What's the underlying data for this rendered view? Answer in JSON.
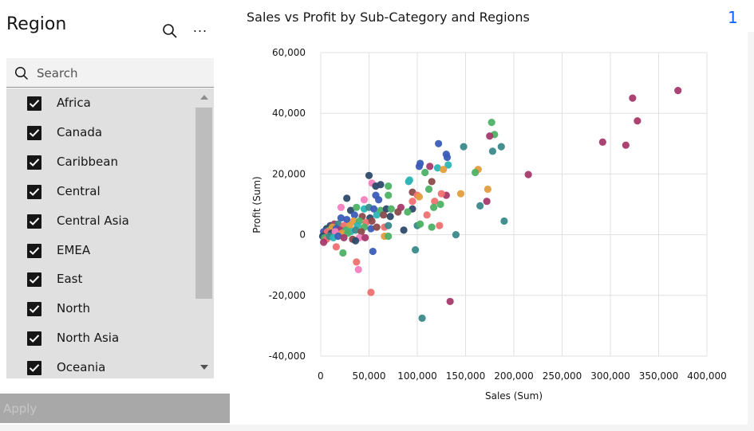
{
  "filter": {
    "title": "Region",
    "overflow_label": "...",
    "search": {
      "placeholder": "Search",
      "value": ""
    },
    "items": [
      {
        "label": "Africa",
        "checked": true
      },
      {
        "label": "Canada",
        "checked": true
      },
      {
        "label": "Caribbean",
        "checked": true
      },
      {
        "label": "Central",
        "checked": true
      },
      {
        "label": "Central Asia",
        "checked": true
      },
      {
        "label": "EMEA",
        "checked": true
      },
      {
        "label": "East",
        "checked": true
      },
      {
        "label": "North",
        "checked": true
      },
      {
        "label": "North Asia",
        "checked": true
      },
      {
        "label": "Oceania",
        "checked": true
      }
    ],
    "apply_label": "Apply"
  },
  "page_number": "1",
  "icons": {
    "search": "search-icon",
    "overflow": "overflow-menu-icon",
    "check": "checkmark-icon"
  },
  "colors": {
    "accent": "#0f62fe",
    "list_bg": "#e0e0e0",
    "apply_disabled_bg": "#a8a8a8"
  },
  "chart_data": {
    "type": "scatter",
    "title": "Sales vs Profit by Sub-Category and Regions",
    "xlabel": "Sales (Sum)",
    "ylabel": "Profit (Sum)",
    "xlim": [
      0,
      400000
    ],
    "ylim": [
      -40000,
      60000
    ],
    "xticks": [
      0,
      50000,
      100000,
      150000,
      200000,
      250000,
      300000,
      350000,
      400000
    ],
    "yticks": [
      -40000,
      -20000,
      0,
      20000,
      40000,
      60000
    ],
    "xtick_labels": [
      "0",
      "50,000",
      "100,000",
      "150,000",
      "200,000",
      "250,000",
      "300,000",
      "350,000",
      "400,000"
    ],
    "ytick_labels": [
      "-40,000",
      "-20,000",
      "0",
      "20,000",
      "40,000",
      "60,000"
    ],
    "grid": true,
    "legend": "none",
    "points": [
      {
        "x": 370000,
        "y": 47500,
        "color": "#a7396b"
      },
      {
        "x": 323000,
        "y": 45000,
        "color": "#a7396b"
      },
      {
        "x": 328000,
        "y": 37500,
        "color": "#a7396b"
      },
      {
        "x": 292000,
        "y": 30500,
        "color": "#a7396b"
      },
      {
        "x": 316000,
        "y": 29500,
        "color": "#a7396b"
      },
      {
        "x": 215000,
        "y": 19800,
        "color": "#a7396b"
      },
      {
        "x": 177000,
        "y": 37000,
        "color": "#4eb265"
      },
      {
        "x": 180000,
        "y": 33000,
        "color": "#4eb265"
      },
      {
        "x": 175000,
        "y": 32500,
        "color": "#a7396b"
      },
      {
        "x": 187000,
        "y": 29000,
        "color": "#3a8a8a"
      },
      {
        "x": 178000,
        "y": 27500,
        "color": "#3a8a8a"
      },
      {
        "x": 148000,
        "y": 29000,
        "color": "#3a8a8a"
      },
      {
        "x": 122000,
        "y": 30000,
        "color": "#3b5db8"
      },
      {
        "x": 130000,
        "y": 26500,
        "color": "#3b5db8"
      },
      {
        "x": 131000,
        "y": 25500,
        "color": "#3b5db8"
      },
      {
        "x": 103000,
        "y": 23500,
        "color": "#3b5db8"
      },
      {
        "x": 102000,
        "y": 22500,
        "color": "#3b5db8"
      },
      {
        "x": 132000,
        "y": 23000,
        "color": "#2cb5b5"
      },
      {
        "x": 121000,
        "y": 22000,
        "color": "#2cb5b5"
      },
      {
        "x": 127000,
        "y": 21500,
        "color": "#e49c3c"
      },
      {
        "x": 163000,
        "y": 21500,
        "color": "#e49c3c"
      },
      {
        "x": 160000,
        "y": 20500,
        "color": "#4eb265"
      },
      {
        "x": 113000,
        "y": 22500,
        "color": "#a7396b"
      },
      {
        "x": 108000,
        "y": 20500,
        "color": "#4eb265"
      },
      {
        "x": 50000,
        "y": 19500,
        "color": "#2e4a6b"
      },
      {
        "x": 91000,
        "y": 17500,
        "color": "#2cb5b5"
      },
      {
        "x": 92000,
        "y": 18000,
        "color": "#2cb5b5"
      },
      {
        "x": 115000,
        "y": 17500,
        "color": "#8b4a4a"
      },
      {
        "x": 53000,
        "y": 17000,
        "color": "#f47fbf"
      },
      {
        "x": 57000,
        "y": 16000,
        "color": "#2e4a6b"
      },
      {
        "x": 62000,
        "y": 16500,
        "color": "#2e4a6b"
      },
      {
        "x": 70000,
        "y": 16000,
        "color": "#4eb265"
      },
      {
        "x": 112000,
        "y": 15000,
        "color": "#4eb265"
      },
      {
        "x": 95000,
        "y": 14000,
        "color": "#8b4a4a"
      },
      {
        "x": 57000,
        "y": 13000,
        "color": "#3b5db8"
      },
      {
        "x": 70000,
        "y": 13000,
        "color": "#4eb265"
      },
      {
        "x": 100000,
        "y": 13000,
        "color": "#ef7070"
      },
      {
        "x": 130000,
        "y": 13000,
        "color": "#a7396b"
      },
      {
        "x": 102000,
        "y": 12500,
        "color": "#e49c3c"
      },
      {
        "x": 125000,
        "y": 13500,
        "color": "#ef7070"
      },
      {
        "x": 145000,
        "y": 13500,
        "color": "#e49c3c"
      },
      {
        "x": 173000,
        "y": 15000,
        "color": "#e49c3c"
      },
      {
        "x": 27000,
        "y": 12000,
        "color": "#2e4a6b"
      },
      {
        "x": 60000,
        "y": 11500,
        "color": "#3b5db8"
      },
      {
        "x": 45000,
        "y": 11500,
        "color": "#f47fbf"
      },
      {
        "x": 95000,
        "y": 11000,
        "color": "#ef7070"
      },
      {
        "x": 118000,
        "y": 11000,
        "color": "#ef7070"
      },
      {
        "x": 172000,
        "y": 11000,
        "color": "#a7396b"
      },
      {
        "x": 165000,
        "y": 9500,
        "color": "#3a8a8a"
      },
      {
        "x": 124000,
        "y": 10000,
        "color": "#4eb265"
      },
      {
        "x": 21000,
        "y": 9000,
        "color": "#f47fbf"
      },
      {
        "x": 31000,
        "y": 8000,
        "color": "#2e4a6b"
      },
      {
        "x": 37000,
        "y": 9000,
        "color": "#4eb265"
      },
      {
        "x": 45000,
        "y": 8500,
        "color": "#2cb5b5"
      },
      {
        "x": 50000,
        "y": 9000,
        "color": "#3a8a8a"
      },
      {
        "x": 55000,
        "y": 8500,
        "color": "#3b5db8"
      },
      {
        "x": 62000,
        "y": 8000,
        "color": "#4eb265"
      },
      {
        "x": 68000,
        "y": 8500,
        "color": "#2e4a6b"
      },
      {
        "x": 73000,
        "y": 8500,
        "color": "#4eb265"
      },
      {
        "x": 83000,
        "y": 9000,
        "color": "#a7396b"
      },
      {
        "x": 95000,
        "y": 8500,
        "color": "#2e4a6b"
      },
      {
        "x": 117000,
        "y": 9000,
        "color": "#4eb265"
      },
      {
        "x": 90000,
        "y": 7500,
        "color": "#4eb265"
      },
      {
        "x": 80000,
        "y": 7500,
        "color": "#8b4a4a"
      },
      {
        "x": 110000,
        "y": 6500,
        "color": "#ef7070"
      },
      {
        "x": 35000,
        "y": 6500,
        "color": "#3b5db8"
      },
      {
        "x": 43000,
        "y": 6000,
        "color": "#8b4a4a"
      },
      {
        "x": 51000,
        "y": 5500,
        "color": "#2e4a6b"
      },
      {
        "x": 58000,
        "y": 6500,
        "color": "#2cb5b5"
      },
      {
        "x": 65000,
        "y": 6500,
        "color": "#8b4a4a"
      },
      {
        "x": 72000,
        "y": 6000,
        "color": "#2e4a6b"
      },
      {
        "x": 21000,
        "y": 5500,
        "color": "#3b5db8"
      },
      {
        "x": 27000,
        "y": 5000,
        "color": "#3b5db8"
      },
      {
        "x": 34000,
        "y": 4500,
        "color": "#e49c3c"
      },
      {
        "x": 40000,
        "y": 4500,
        "color": "#4eb265"
      },
      {
        "x": 47000,
        "y": 4000,
        "color": "#ef7070"
      },
      {
        "x": 53000,
        "y": 4500,
        "color": "#8b4a4a"
      },
      {
        "x": 10000,
        "y": 3000,
        "color": "#2e4a6b"
      },
      {
        "x": 14000,
        "y": 3500,
        "color": "#a7396b"
      },
      {
        "x": 18000,
        "y": 3500,
        "color": "#3a8a8a"
      },
      {
        "x": 24000,
        "y": 3000,
        "color": "#ef7070"
      },
      {
        "x": 30000,
        "y": 3000,
        "color": "#e49c3c"
      },
      {
        "x": 38000,
        "y": 3000,
        "color": "#2cb5b5"
      },
      {
        "x": 45000,
        "y": 2500,
        "color": "#4eb265"
      },
      {
        "x": 52000,
        "y": 2000,
        "color": "#3b5db8"
      },
      {
        "x": 58000,
        "y": 2500,
        "color": "#8b4a4a"
      },
      {
        "x": 66000,
        "y": 2500,
        "color": "#ef7070"
      },
      {
        "x": 70000,
        "y": 3000,
        "color": "#3a8a8a"
      },
      {
        "x": 100000,
        "y": 3000,
        "color": "#3a8a8a"
      },
      {
        "x": 103000,
        "y": 3500,
        "color": "#4eb265"
      },
      {
        "x": 115000,
        "y": 2500,
        "color": "#4eb265"
      },
      {
        "x": 123000,
        "y": 3000,
        "color": "#ef7070"
      },
      {
        "x": 6000,
        "y": 2000,
        "color": "#2e4a6b"
      },
      {
        "x": 9000,
        "y": 1500,
        "color": "#4eb265"
      },
      {
        "x": 12000,
        "y": 2500,
        "color": "#e49c3c"
      },
      {
        "x": 16000,
        "y": 2000,
        "color": "#3b5db8"
      },
      {
        "x": 20000,
        "y": 1500,
        "color": "#a7396b"
      },
      {
        "x": 26000,
        "y": 1500,
        "color": "#4eb265"
      },
      {
        "x": 31000,
        "y": 1000,
        "color": "#2cb5b5"
      },
      {
        "x": 36000,
        "y": 1500,
        "color": "#3a8a8a"
      },
      {
        "x": 42000,
        "y": 1000,
        "color": "#8b4a4a"
      },
      {
        "x": 86000,
        "y": 1500,
        "color": "#2e4a6b"
      },
      {
        "x": 3000,
        "y": 1000,
        "color": "#3b5db8"
      },
      {
        "x": 5000,
        "y": 500,
        "color": "#a7396b"
      },
      {
        "x": 7000,
        "y": 1000,
        "color": "#ef7070"
      },
      {
        "x": 11000,
        "y": 500,
        "color": "#2e4a6b"
      },
      {
        "x": 15000,
        "y": 1000,
        "color": "#f47fbf"
      },
      {
        "x": 22000,
        "y": 500,
        "color": "#e49c3c"
      },
      {
        "x": 28000,
        "y": 500,
        "color": "#4eb265"
      },
      {
        "x": 2000,
        "y": -500,
        "color": "#2e4a6b"
      },
      {
        "x": 4000,
        "y": -1000,
        "color": "#4eb265"
      },
      {
        "x": 6000,
        "y": -1500,
        "color": "#ef7070"
      },
      {
        "x": 9000,
        "y": -500,
        "color": "#3a8a8a"
      },
      {
        "x": 13000,
        "y": -1000,
        "color": "#2cb5b5"
      },
      {
        "x": 18000,
        "y": -500,
        "color": "#3b5db8"
      },
      {
        "x": 24000,
        "y": -1000,
        "color": "#a7396b"
      },
      {
        "x": 33000,
        "y": -1500,
        "color": "#8b4a4a"
      },
      {
        "x": 40000,
        "y": -1000,
        "color": "#f47fbf"
      },
      {
        "x": 46000,
        "y": -1000,
        "color": "#a7396b"
      },
      {
        "x": 66000,
        "y": -500,
        "color": "#e49c3c"
      },
      {
        "x": 70000,
        "y": -500,
        "color": "#4eb265"
      },
      {
        "x": 140000,
        "y": 0,
        "color": "#3a8a8a"
      },
      {
        "x": 3000,
        "y": -2500,
        "color": "#a7396b"
      },
      {
        "x": 36000,
        "y": -2000,
        "color": "#2e4a6b"
      },
      {
        "x": 16000,
        "y": -4000,
        "color": "#ef7070"
      },
      {
        "x": 23000,
        "y": -6000,
        "color": "#4eb265"
      },
      {
        "x": 54000,
        "y": -5500,
        "color": "#3b5db8"
      },
      {
        "x": 98000,
        "y": -5000,
        "color": "#3a8a8a"
      },
      {
        "x": 190000,
        "y": 4500,
        "color": "#3a8a8a"
      },
      {
        "x": 37000,
        "y": -9000,
        "color": "#ef7070"
      },
      {
        "x": 39000,
        "y": -11500,
        "color": "#f47fbf"
      },
      {
        "x": 52000,
        "y": -19000,
        "color": "#ef7070"
      },
      {
        "x": 134000,
        "y": -22000,
        "color": "#a7396b"
      },
      {
        "x": 105000,
        "y": -27500,
        "color": "#3a8a8a"
      }
    ]
  }
}
